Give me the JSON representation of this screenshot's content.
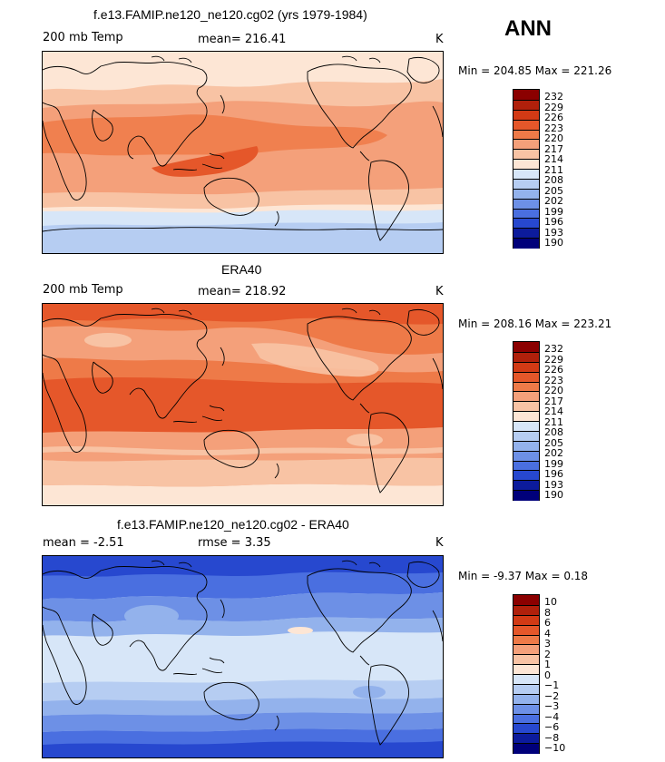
{
  "season": "ANN",
  "panels": [
    {
      "title": "f.e13.FAMIP.ne120_ne120.cg02 (yrs 1979-1984)",
      "left_label": "200 mb Temp",
      "center_label": "mean= 216.41",
      "units": "K",
      "minmax": "Min = 204.85 Max = 221.26"
    },
    {
      "title": "ERA40",
      "left_label": "200 mb Temp",
      "center_label": "mean= 218.92",
      "units": "K",
      "minmax": "Min = 208.16 Max = 223.21"
    },
    {
      "title": "f.e13.FAMIP.ne120_ne120.cg02 - ERA40",
      "left_label": "mean =   -2.51",
      "center_label": "rmse =    3.35",
      "units": "K",
      "minmax": "Min =  -9.37 Max =   0.18"
    }
  ],
  "legend_abs": {
    "labels": [
      "232",
      "229",
      "226",
      "223",
      "220",
      "217",
      "214",
      "211",
      "208",
      "205",
      "202",
      "199",
      "196",
      "193",
      "190"
    ],
    "colors": [
      "#8b0000",
      "#b0200b",
      "#d23a15",
      "#e5572a",
      "#ee7a48",
      "#f4a07a",
      "#f8c3a4",
      "#fde6d5",
      "#d7e6f8",
      "#b6cdf2",
      "#93b2ec",
      "#6d90e6",
      "#4a6fe0",
      "#2748cf",
      "#0c1b9c",
      "#00007a"
    ]
  },
  "legend_diff": {
    "labels": [
      "10",
      "8",
      "6",
      "4",
      "3",
      "2",
      "1",
      "0",
      "−1",
      "−2",
      "−3",
      "−4",
      "−6",
      "−8",
      "−10"
    ],
    "colors": [
      "#8b0000",
      "#b0200b",
      "#d23a15",
      "#e5572a",
      "#ee7a48",
      "#f4a07a",
      "#f8c3a4",
      "#fde6d5",
      "#d7e6f8",
      "#b6cdf2",
      "#93b2ec",
      "#6d90e6",
      "#4a6fe0",
      "#2748cf",
      "#0c1b9c",
      "#00007a"
    ]
  }
}
